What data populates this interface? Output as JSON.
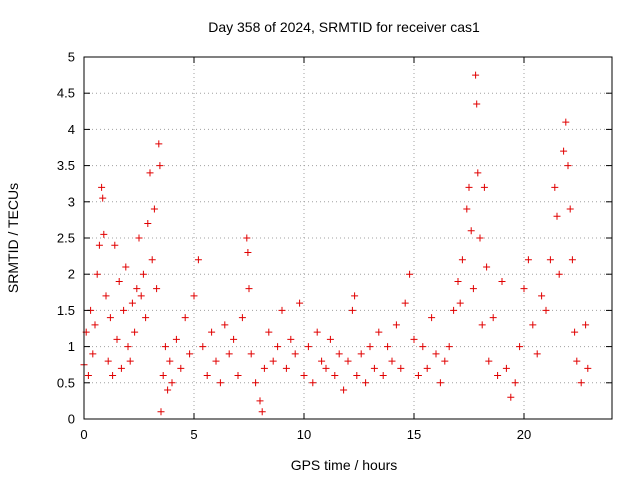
{
  "chart_data": {
    "type": "scatter",
    "title": "Day 358 of 2024, SRMTID for receiver cas1",
    "xlabel": "GPS time / hours",
    "ylabel": "SRMTID / TECUs",
    "xlim": [
      0,
      24
    ],
    "ylim": [
      0,
      5
    ],
    "xticks": [
      0,
      5,
      10,
      15,
      20
    ],
    "xtick_labels": [
      "0",
      "5",
      "10",
      "15",
      "20"
    ],
    "yticks": [
      0,
      0.5,
      1,
      1.5,
      2,
      2.5,
      3,
      3.5,
      4,
      4.5,
      5
    ],
    "ytick_labels": [
      "0",
      "0.5",
      "1",
      "1.5",
      "2",
      "2.5",
      "3",
      "3.5",
      "4",
      "4.5",
      "5"
    ],
    "grid": true,
    "marker": "plus",
    "series": [
      {
        "name": "SRMTID",
        "color": "#e00000",
        "points": [
          [
            0.0,
            0.75
          ],
          [
            0.1,
            1.2
          ],
          [
            0.2,
            0.6
          ],
          [
            0.3,
            1.5
          ],
          [
            0.4,
            0.9
          ],
          [
            0.5,
            1.3
          ],
          [
            0.6,
            2.0
          ],
          [
            0.7,
            2.4
          ],
          [
            0.8,
            3.2
          ],
          [
            0.85,
            3.05
          ],
          [
            0.9,
            2.55
          ],
          [
            1.0,
            1.7
          ],
          [
            1.1,
            0.8
          ],
          [
            1.2,
            1.4
          ],
          [
            1.3,
            0.6
          ],
          [
            1.4,
            2.4
          ],
          [
            1.5,
            1.1
          ],
          [
            1.6,
            1.9
          ],
          [
            1.7,
            0.7
          ],
          [
            1.8,
            1.5
          ],
          [
            1.9,
            2.1
          ],
          [
            2.0,
            1.0
          ],
          [
            2.1,
            0.8
          ],
          [
            2.2,
            1.6
          ],
          [
            2.3,
            1.2
          ],
          [
            2.4,
            1.8
          ],
          [
            2.5,
            2.5
          ],
          [
            2.6,
            1.7
          ],
          [
            2.7,
            2.0
          ],
          [
            2.8,
            1.4
          ],
          [
            2.9,
            2.7
          ],
          [
            3.0,
            3.4
          ],
          [
            3.1,
            2.2
          ],
          [
            3.2,
            2.9
          ],
          [
            3.3,
            1.8
          ],
          [
            3.4,
            3.8
          ],
          [
            3.45,
            3.5
          ],
          [
            3.5,
            0.1
          ],
          [
            3.6,
            0.6
          ],
          [
            3.7,
            1.0
          ],
          [
            3.8,
            0.4
          ],
          [
            3.9,
            0.8
          ],
          [
            4.0,
            0.5
          ],
          [
            4.2,
            1.1
          ],
          [
            4.4,
            0.7
          ],
          [
            4.6,
            1.4
          ],
          [
            4.8,
            0.9
          ],
          [
            5.0,
            1.7
          ],
          [
            5.2,
            2.2
          ],
          [
            5.4,
            1.0
          ],
          [
            5.6,
            0.6
          ],
          [
            5.8,
            1.2
          ],
          [
            6.0,
            0.8
          ],
          [
            6.2,
            0.5
          ],
          [
            6.4,
            1.3
          ],
          [
            6.6,
            0.9
          ],
          [
            6.8,
            1.1
          ],
          [
            7.0,
            0.6
          ],
          [
            7.2,
            1.4
          ],
          [
            7.4,
            2.5
          ],
          [
            7.45,
            2.3
          ],
          [
            7.5,
            1.8
          ],
          [
            7.6,
            0.9
          ],
          [
            7.8,
            0.5
          ],
          [
            8.0,
            0.25
          ],
          [
            8.1,
            0.1
          ],
          [
            8.2,
            0.7
          ],
          [
            8.4,
            1.2
          ],
          [
            8.6,
            0.8
          ],
          [
            8.8,
            1.0
          ],
          [
            9.0,
            1.5
          ],
          [
            9.2,
            0.7
          ],
          [
            9.4,
            1.1
          ],
          [
            9.6,
            0.9
          ],
          [
            9.8,
            1.6
          ],
          [
            10.0,
            0.6
          ],
          [
            10.2,
            1.0
          ],
          [
            10.4,
            0.5
          ],
          [
            10.6,
            1.2
          ],
          [
            10.8,
            0.8
          ],
          [
            11.0,
            0.7
          ],
          [
            11.2,
            1.1
          ],
          [
            11.4,
            0.6
          ],
          [
            11.6,
            0.9
          ],
          [
            11.8,
            0.4
          ],
          [
            12.0,
            0.8
          ],
          [
            12.2,
            1.5
          ],
          [
            12.3,
            1.7
          ],
          [
            12.4,
            0.6
          ],
          [
            12.6,
            0.9
          ],
          [
            12.8,
            0.5
          ],
          [
            13.0,
            1.0
          ],
          [
            13.2,
            0.7
          ],
          [
            13.4,
            1.2
          ],
          [
            13.6,
            0.6
          ],
          [
            13.8,
            1.0
          ],
          [
            14.0,
            0.8
          ],
          [
            14.2,
            1.3
          ],
          [
            14.4,
            0.7
          ],
          [
            14.6,
            1.6
          ],
          [
            14.8,
            2.0
          ],
          [
            15.0,
            1.1
          ],
          [
            15.2,
            0.6
          ],
          [
            15.4,
            1.0
          ],
          [
            15.6,
            0.7
          ],
          [
            15.8,
            1.4
          ],
          [
            16.0,
            0.9
          ],
          [
            16.2,
            0.5
          ],
          [
            16.4,
            0.8
          ],
          [
            16.6,
            1.0
          ],
          [
            16.8,
            1.5
          ],
          [
            17.0,
            1.9
          ],
          [
            17.1,
            1.6
          ],
          [
            17.2,
            2.2
          ],
          [
            17.4,
            2.9
          ],
          [
            17.5,
            3.2
          ],
          [
            17.6,
            2.6
          ],
          [
            17.7,
            1.8
          ],
          [
            17.8,
            4.75
          ],
          [
            17.85,
            4.35
          ],
          [
            17.9,
            3.4
          ],
          [
            18.0,
            2.5
          ],
          [
            18.1,
            1.3
          ],
          [
            18.2,
            3.2
          ],
          [
            18.3,
            2.1
          ],
          [
            18.4,
            0.8
          ],
          [
            18.6,
            1.4
          ],
          [
            18.8,
            0.6
          ],
          [
            19.0,
            1.9
          ],
          [
            19.2,
            0.7
          ],
          [
            19.4,
            0.3
          ],
          [
            19.6,
            0.5
          ],
          [
            19.8,
            1.0
          ],
          [
            20.0,
            1.8
          ],
          [
            20.2,
            2.2
          ],
          [
            20.4,
            1.3
          ],
          [
            20.6,
            0.9
          ],
          [
            20.8,
            1.7
          ],
          [
            21.0,
            1.5
          ],
          [
            21.2,
            2.2
          ],
          [
            21.4,
            3.2
          ],
          [
            21.5,
            2.8
          ],
          [
            21.6,
            2.0
          ],
          [
            21.8,
            3.7
          ],
          [
            21.9,
            4.1
          ],
          [
            22.0,
            3.5
          ],
          [
            22.1,
            2.9
          ],
          [
            22.2,
            2.2
          ],
          [
            22.3,
            1.2
          ],
          [
            22.4,
            0.8
          ],
          [
            22.6,
            0.5
          ],
          [
            22.8,
            1.3
          ],
          [
            22.9,
            0.7
          ]
        ]
      }
    ]
  }
}
